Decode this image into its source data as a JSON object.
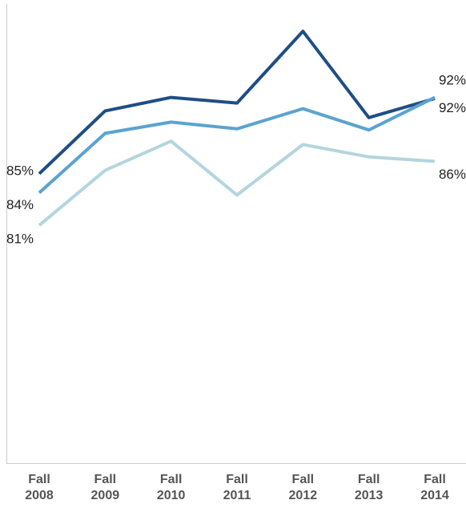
{
  "chart_data": {
    "type": "line",
    "categories": [
      "Fall\n2008",
      "Fall\n2009",
      "Fall\n2010",
      "Fall\n2011",
      "Fall\n2012",
      "Fall\n2013",
      "Fall\n2014"
    ],
    "ylim": [
      60,
      100
    ],
    "series": [
      {
        "color": "#1f4e85",
        "values": [
          85.3,
          90.9,
          92.1,
          91.6,
          98.0,
          90.3,
          92.0
        ],
        "value_labels": [
          "85%",
          null,
          null,
          null,
          null,
          null,
          "92%"
        ]
      },
      {
        "color": "#5ba3cf",
        "values": [
          83.6,
          88.9,
          89.9,
          89.3,
          91.1,
          89.2,
          92.1
        ],
        "value_labels": [
          "84%",
          null,
          null,
          null,
          null,
          null,
          "92%"
        ]
      },
      {
        "color": "#b3d5de",
        "values": [
          80.7,
          85.6,
          88.2,
          83.4,
          87.9,
          86.8,
          86.4
        ],
        "value_labels": [
          "81%",
          null,
          null,
          null,
          null,
          null,
          "86%"
        ]
      }
    ]
  }
}
